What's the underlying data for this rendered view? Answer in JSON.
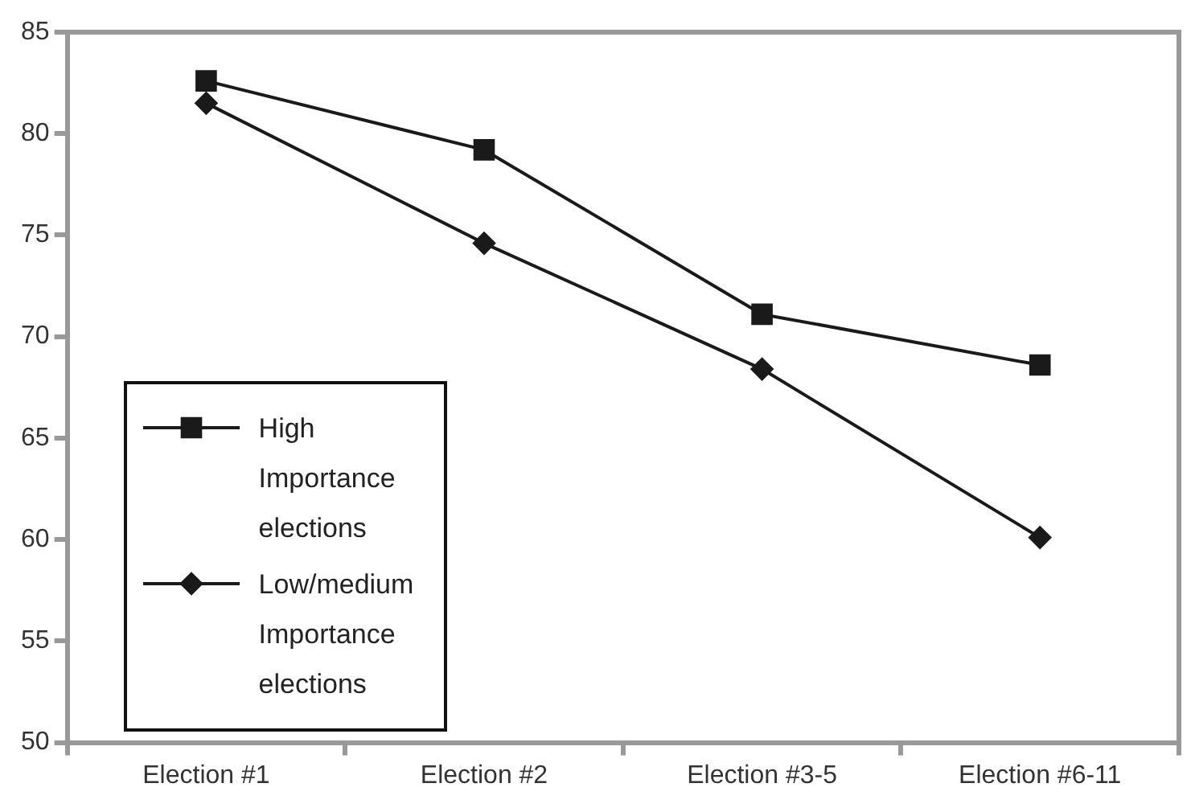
{
  "chart_data": {
    "type": "line",
    "categories": [
      "Election #1",
      "Election #2",
      "Election #3-5",
      "Election #6-11"
    ],
    "series": [
      {
        "name": "High Importance elections",
        "color": "#1a1a1a",
        "marker": "square",
        "values": [
          82.6,
          79.2,
          71.1,
          68.6
        ]
      },
      {
        "name": "Low/medium Importance elections",
        "color": "#1a1a1a",
        "marker": "diamond",
        "values": [
          81.5,
          74.6,
          68.4,
          60.1
        ]
      }
    ],
    "ylim": [
      50,
      85
    ],
    "yticks": [
      50,
      55,
      60,
      65,
      70,
      75,
      80,
      85
    ],
    "grid": false,
    "legend": "bottom left",
    "line_style": "solid"
  }
}
